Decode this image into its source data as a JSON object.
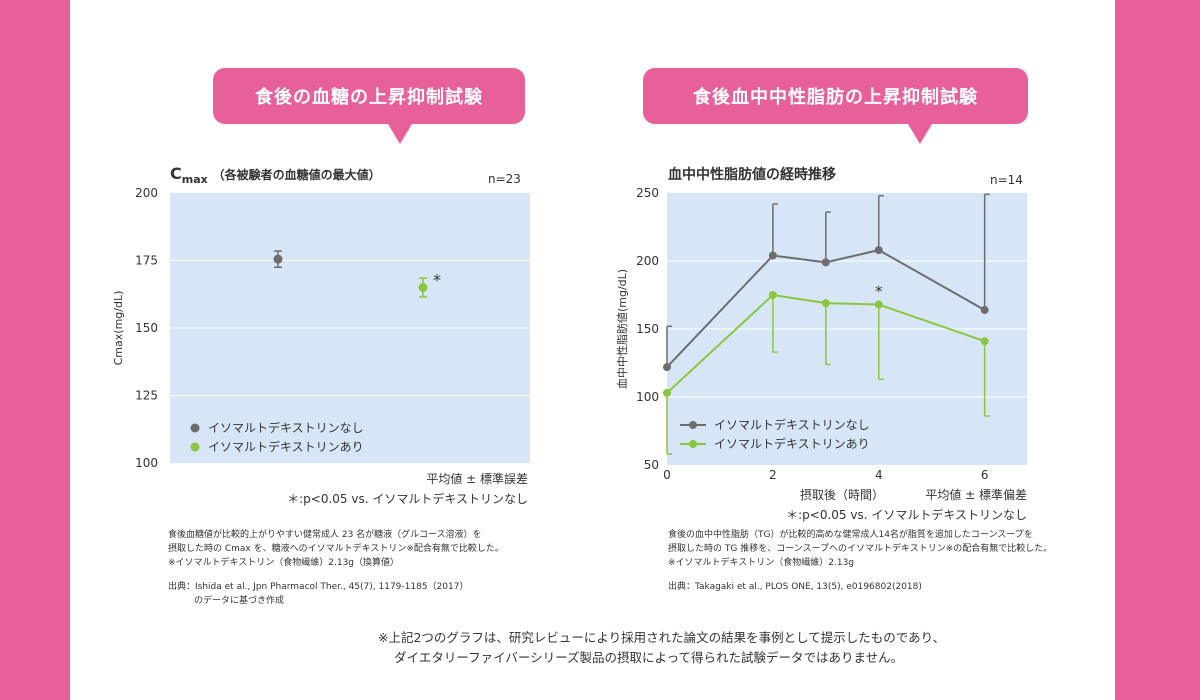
{
  "colors": {
    "background": "#e8609a",
    "panel": "#ffffff",
    "plot_bg": "#d6e6f6",
    "gray": "#6d6d6d",
    "green": "#8cc63f",
    "text": "#333333"
  },
  "left": {
    "bubble_title": "食後の血糖の上昇抑制試験",
    "caption_main": "C",
    "caption_sub": "max",
    "caption_rest": "（各被験者の血糖値の最大値）",
    "n_label": "n=23",
    "note1": "平均値 ± 標準誤差",
    "note2": "＊:p<0.05 vs. イソマルトデキストリンなし",
    "desc": [
      "食後血糖値が比較的上がりやすい健常成人 23 名が糖液（グルコース溶液）を",
      "摂取した時の Cmax を、糖液へのイソマルトデキストリン※配合有無で比較した。",
      "※イソマルトデキストリン（食物繊維）2.13g（換算値）"
    ],
    "source": [
      "出典：Ishida et al., Jpn Pharmacol Ther., 45(7), 1179-1185（2017）",
      "のデータに基づき作成"
    ]
  },
  "right": {
    "bubble_title": "食後血中中性脂肪の上昇抑制試験",
    "caption": "血中中性脂肪値の経時推移",
    "n_label": "n=14",
    "xlabel": "摂取後（時間）",
    "note1": "平均値 ± 標準偏差",
    "note2": "＊:p<0.05 vs. イソマルトデキストリンなし",
    "desc": [
      "食後の血中中性脂肪（TG）が比較的高めな健常成人14名が脂質を追加したコーンスープを",
      "摂取した時の TG 推移を、コーンスープへのイソマルトデキストリン※の配合有無で比較した。",
      "※イソマルトデキストリン（食物繊維）2.13g"
    ],
    "source": [
      "出典：Takagaki et al., PLOS ONE, 13(5), e0196802(2018)"
    ]
  },
  "footnote": [
    "※上記2つのグラフは、研究レビューにより採用された論文の結果を事例として提示したものであり、",
    "ダイエタリーファイバーシリーズ製品の摂取によって得られた試験データではありません。"
  ],
  "chart_data": [
    {
      "type": "scatter",
      "title": "Cmax（各被験者の血糖値の最大値）",
      "ylabel": "Cmax(mg/dL)",
      "ylim": [
        100,
        200
      ],
      "yticks": [
        100,
        125,
        150,
        175,
        200
      ],
      "grid": true,
      "legend_position": "bottom-left",
      "series": [
        {
          "name": "イソマルトデキストリンなし",
          "value": 175.5,
          "error": 3,
          "color": "#6d6d6d"
        },
        {
          "name": "イソマルトデキストリンあり",
          "value": 165,
          "error": 3.5,
          "color": "#8cc63f",
          "annotation": "*"
        }
      ]
    },
    {
      "type": "line",
      "title": "血中中性脂肪値の経時推移",
      "xlabel": "摂取後（時間）",
      "ylabel": "血中中性脂肪値(mg/dL)",
      "x": [
        0,
        2,
        3,
        4,
        6
      ],
      "xticks": [
        0,
        2,
        4,
        6
      ],
      "xlim": [
        0,
        6.8
      ],
      "ylim": [
        50,
        250
      ],
      "yticks": [
        50,
        100,
        150,
        200,
        250
      ],
      "grid": true,
      "legend_position": "bottom-left",
      "series": [
        {
          "name": "イソマルトデキストリンなし",
          "values": [
            122,
            204,
            199,
            208,
            164
          ],
          "upper_error": [
            30,
            38,
            37,
            40,
            85
          ],
          "color": "#6d6d6d"
        },
        {
          "name": "イソマルトデキストリンあり",
          "values": [
            103,
            175,
            169,
            168,
            141
          ],
          "lower_error": [
            45,
            42,
            45,
            55,
            55
          ],
          "color": "#8cc63f"
        }
      ],
      "annotations": [
        {
          "x": 4,
          "text": "*"
        }
      ]
    }
  ]
}
